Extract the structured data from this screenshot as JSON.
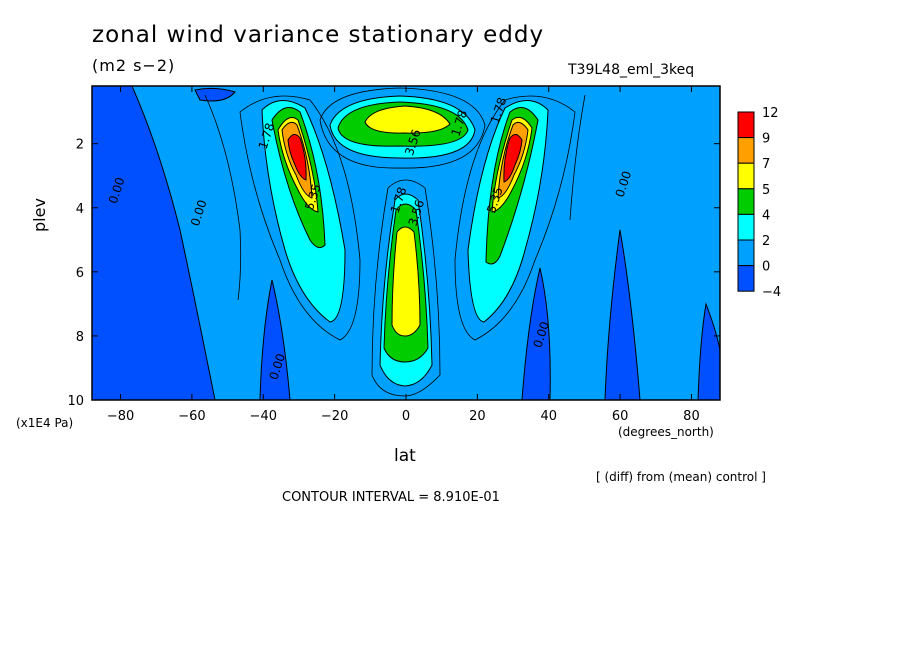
{
  "header": {
    "title": "zonal wind variance stationary eddy",
    "units": "(m2 s−2)",
    "run_name": "T39L48_eml_3keq"
  },
  "axes": {
    "ylabel": "plev",
    "ylabel_units": "(x1E4 Pa)",
    "xlabel": "lat",
    "xlabel_units": "(degrees_north)"
  },
  "footer": {
    "diff_note": "[ (diff) from (mean) control ]",
    "contour_interval": "CONTOUR INTERVAL = 8.910E-01"
  },
  "chart_data": {
    "type": "heatmap",
    "title": "zonal wind variance stationary eddy",
    "subtitle": "(m2 s−2)",
    "xlabel": "lat",
    "ylabel": "plev",
    "xlim": [
      -88,
      88
    ],
    "ylim": [
      0.2,
      10
    ],
    "y_inverted": true,
    "x_ticks": [
      -80,
      -60,
      -40,
      -20,
      0,
      20,
      40,
      60,
      80
    ],
    "y_ticks": [
      2,
      4,
      6,
      8,
      10
    ],
    "legend": {
      "position": "right",
      "labels": [
        "12",
        "9",
        "7",
        "5",
        "4",
        "2",
        "0",
        "−4"
      ],
      "colors": [
        "#ff0000",
        "#ffa000",
        "#ffff00",
        "#00cc00",
        "#00ffff",
        "#00a0ff",
        "#0050ff"
      ]
    },
    "contour_labels": [
      {
        "text": "0.00",
        "lat": -80,
        "plev": 3.5
      },
      {
        "text": "0.00",
        "lat": -57,
        "plev": 4.2
      },
      {
        "text": "1.78",
        "lat": -38,
        "plev": 1.8
      },
      {
        "text": "5.35",
        "lat": -25,
        "plev": 3.7
      },
      {
        "text": "1.78",
        "lat": 16,
        "plev": 1.4
      },
      {
        "text": "3.56",
        "lat": 3,
        "plev": 2.0
      },
      {
        "text": "1.78",
        "lat": -1,
        "plev": 3.8
      },
      {
        "text": "3.56",
        "lat": 4,
        "plev": 4.2
      },
      {
        "text": "1.78",
        "lat": 27,
        "plev": 1.0
      },
      {
        "text": "5.35",
        "lat": 26,
        "plev": 3.8
      },
      {
        "text": "0.00",
        "lat": 62,
        "plev": 3.3
      },
      {
        "text": "0.00",
        "lat": 39,
        "plev": 8.0
      },
      {
        "text": "0.00",
        "lat": -35,
        "plev": 9.0
      }
    ]
  }
}
